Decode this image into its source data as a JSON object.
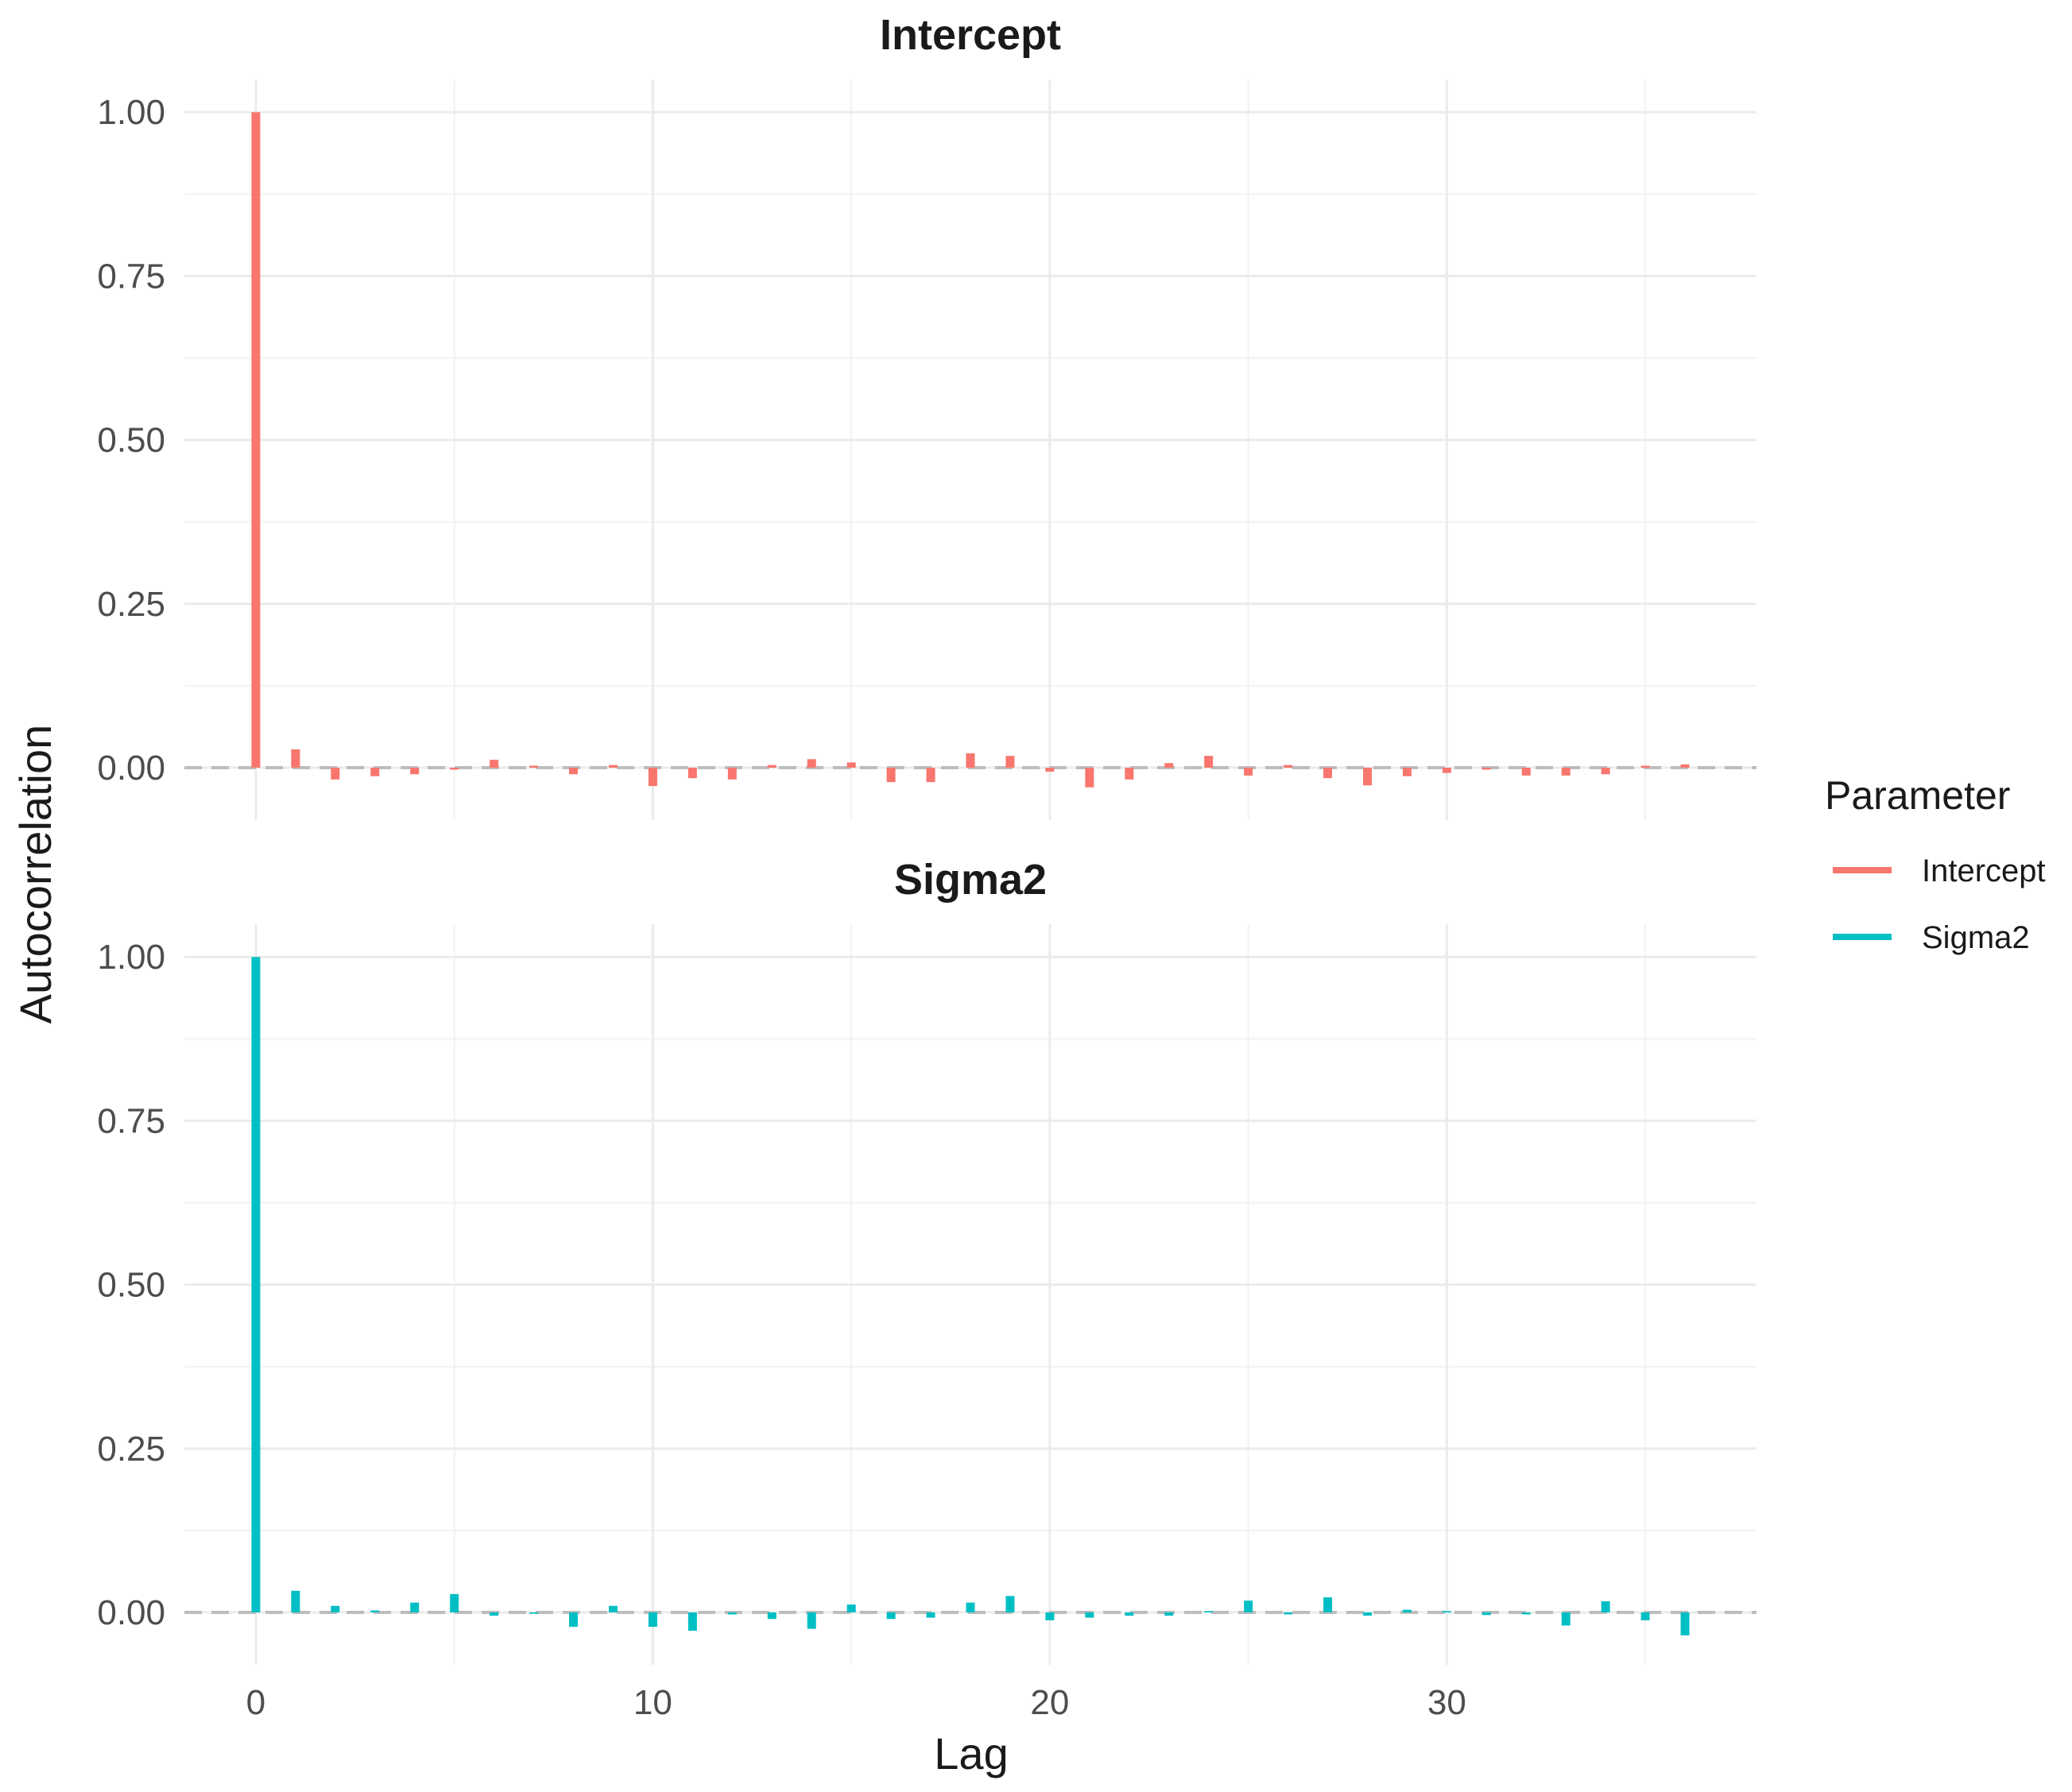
{
  "chart_data": {
    "type": "bar",
    "xlabel": "Lag",
    "ylabel": "Autocorrelation",
    "xlim": [
      -1.8,
      37.8
    ],
    "x_ticks": [
      0,
      10,
      20,
      30
    ],
    "y_ticks": [
      0,
      0.25,
      0.5,
      0.75,
      1
    ],
    "y_tick_labels": [
      "0.00",
      "0.25",
      "0.50",
      "0.75",
      "1.00"
    ],
    "ylim": [
      -0.08,
      1.05
    ],
    "grid": true,
    "reference_line": {
      "y": 0,
      "style": "dashed",
      "color": "#bdbdbd"
    },
    "legend": {
      "title": "Parameter",
      "position": "right",
      "entries": [
        {
          "label": "Intercept",
          "color": "#F8766D"
        },
        {
          "label": "Sigma2",
          "color": "#00BFC4"
        }
      ]
    },
    "facets": [
      {
        "title": "Intercept",
        "series": "Intercept",
        "color": "#F8766D",
        "lags": [
          0,
          1,
          2,
          3,
          4,
          5,
          6,
          7,
          8,
          9,
          10,
          11,
          12,
          13,
          14,
          15,
          16,
          17,
          18,
          19,
          20,
          21,
          22,
          23,
          24,
          25,
          26,
          27,
          28,
          29,
          30,
          31,
          32,
          33,
          34,
          35,
          36
        ],
        "values": [
          1.0,
          0.028,
          -0.018,
          -0.013,
          -0.01,
          -0.003,
          0.012,
          0.003,
          -0.01,
          0.004,
          -0.028,
          -0.016,
          -0.018,
          0.004,
          0.013,
          0.008,
          -0.022,
          -0.022,
          0.022,
          0.018,
          -0.006,
          -0.03,
          -0.018,
          0.007,
          0.018,
          -0.012,
          0.004,
          -0.016,
          -0.027,
          -0.013,
          -0.008,
          -0.003,
          -0.012,
          -0.012,
          -0.01,
          0.003,
          0.005
        ]
      },
      {
        "title": "Sigma2",
        "series": "Sigma2",
        "color": "#00BFC4",
        "lags": [
          0,
          1,
          2,
          3,
          4,
          5,
          6,
          7,
          8,
          9,
          10,
          11,
          12,
          13,
          14,
          15,
          16,
          17,
          18,
          19,
          20,
          21,
          22,
          23,
          24,
          25,
          26,
          27,
          28,
          29,
          30,
          31,
          32,
          33,
          34,
          35,
          36
        ],
        "values": [
          1.0,
          0.033,
          0.01,
          0.003,
          0.015,
          0.028,
          -0.005,
          -0.002,
          -0.022,
          0.01,
          -0.022,
          -0.028,
          -0.003,
          -0.01,
          -0.025,
          0.012,
          -0.01,
          -0.008,
          0.015,
          0.025,
          -0.012,
          -0.008,
          -0.005,
          -0.005,
          0.002,
          0.018,
          -0.003,
          0.023,
          -0.005,
          0.004,
          0.002,
          -0.004,
          -0.003,
          -0.02,
          0.017,
          -0.012,
          -0.035
        ]
      }
    ]
  }
}
